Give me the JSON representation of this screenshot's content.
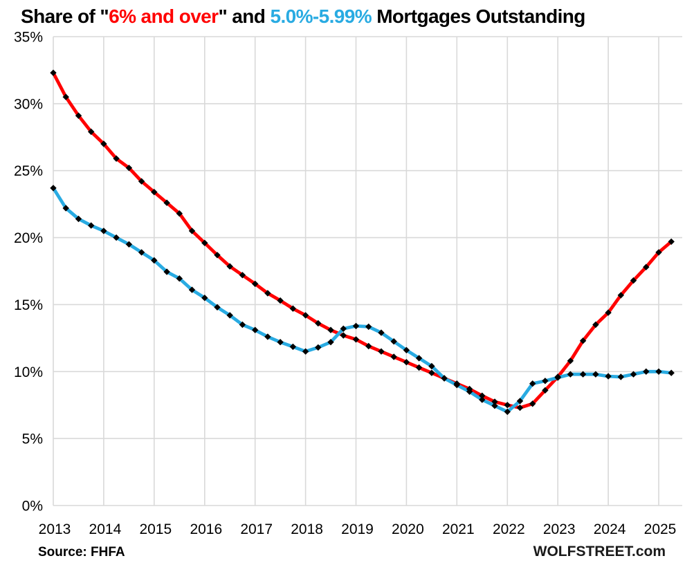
{
  "title": {
    "segments": [
      {
        "text": "Share of \"",
        "color": "#000000"
      },
      {
        "text": "6% and over",
        "color": "#ff0000"
      },
      {
        "text": "\" and ",
        "color": "#000000"
      },
      {
        "text": "5.0%-5.99%",
        "color": "#29abe2"
      },
      {
        "text": " Mortgages Outstanding",
        "color": "#000000"
      }
    ]
  },
  "footer": {
    "source": "Source: FHFA",
    "watermark": "WOLFSTREET.com"
  },
  "chart_data": {
    "type": "line",
    "title": "Share of \"6% and over\" and 5.0%-5.99% Mortgages Outstanding",
    "x_unit": "quarterly",
    "x_start": "2013Q1",
    "x_end": "2025Q2",
    "x_ticks": [
      "2013",
      "2014",
      "2015",
      "2016",
      "2017",
      "2018",
      "2019",
      "2020",
      "2021",
      "2022",
      "2023",
      "2024",
      "2025"
    ],
    "y_ticks": [
      {
        "label": "35%",
        "value": 35
      },
      {
        "label": "30%",
        "value": 30
      },
      {
        "label": "25%",
        "value": 25
      },
      {
        "label": "20%",
        "value": 20
      },
      {
        "label": "15%",
        "value": 15
      },
      {
        "label": "10%",
        "value": 10
      },
      {
        "label": "5%",
        "value": 5
      },
      {
        "label": "0%",
        "value": 0
      }
    ],
    "ylim": [
      0,
      35
    ],
    "grid": true,
    "gridline_color": "#d9d9d9",
    "marker_color": "#000000",
    "legend_position": "none",
    "series": [
      {
        "id": "six-and-over",
        "name": "6% and over",
        "color": "#ff0000",
        "marker": "black-diamond",
        "values": [
          32.3,
          30.5,
          29.1,
          27.9,
          27.0,
          25.9,
          25.2,
          24.2,
          23.4,
          22.6,
          21.8,
          20.5,
          19.6,
          18.7,
          17.85,
          17.2,
          16.55,
          15.85,
          15.3,
          14.7,
          14.2,
          13.6,
          13.1,
          12.7,
          12.4,
          11.9,
          11.5,
          11.1,
          10.7,
          10.3,
          9.9,
          9.5,
          9.1,
          8.7,
          8.2,
          7.75,
          7.5,
          7.3,
          7.6,
          8.6,
          9.6,
          10.8,
          12.3,
          13.5,
          14.4,
          15.7,
          16.8,
          17.8,
          18.9,
          19.7
        ]
      },
      {
        "id": "five-to-five99",
        "name": "5.0%-5.99%",
        "color": "#29abe2",
        "marker": "black-diamond",
        "values": [
          23.7,
          22.2,
          21.4,
          20.9,
          20.5,
          20.0,
          19.5,
          18.9,
          18.3,
          17.45,
          16.95,
          16.1,
          15.5,
          14.8,
          14.2,
          13.5,
          13.1,
          12.6,
          12.2,
          11.85,
          11.5,
          11.8,
          12.2,
          13.2,
          13.4,
          13.35,
          12.9,
          12.25,
          11.6,
          11.0,
          10.4,
          9.5,
          9.0,
          8.5,
          7.9,
          7.45,
          7.0,
          7.8,
          9.1,
          9.3,
          9.55,
          9.8,
          9.8,
          9.8,
          9.65,
          9.6,
          9.8,
          10.0,
          10.0,
          9.9
        ]
      }
    ]
  }
}
